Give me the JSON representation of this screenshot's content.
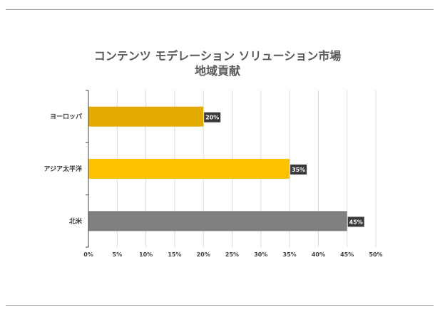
{
  "chart_data": {
    "type": "bar",
    "orientation": "horizontal",
    "title": "コンテンツ モデレーション ソリューション市場",
    "subtitle": "地域貢献",
    "categories": [
      "ヨーロッパ",
      "アジア太平洋",
      "北米"
    ],
    "values": [
      20,
      35,
      45
    ],
    "data_labels": [
      "20%",
      "35%",
      "45%"
    ],
    "colors": [
      "#E3AA00",
      "#FFC000",
      "#808080"
    ],
    "xlim": [
      0,
      50
    ],
    "xticks": [
      "0%",
      "5%",
      "10%",
      "15%",
      "20%",
      "25%",
      "30%",
      "35%",
      "40%",
      "45%",
      "50%"
    ],
    "grid": "vertical",
    "legend": "none"
  }
}
